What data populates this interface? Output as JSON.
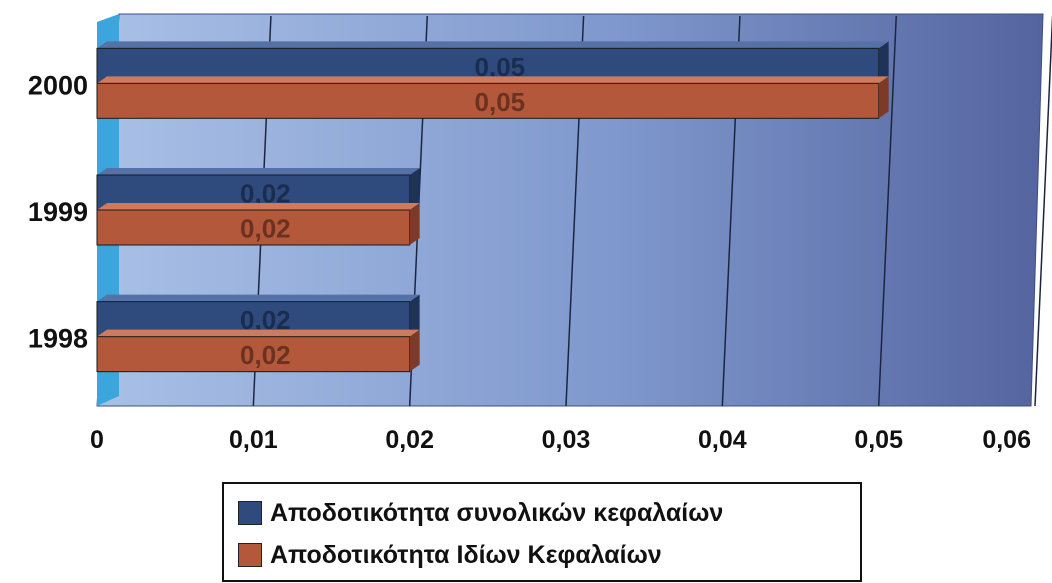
{
  "chart_data": {
    "type": "bar",
    "orientation": "horizontal",
    "categories": [
      "1998",
      "1999",
      "2000"
    ],
    "series": [
      {
        "name": "Αποδοτικότητα συνολικών κεφαλαίων",
        "values": [
          0.02,
          0.02,
          0.05
        ],
        "labels": [
          "0,02",
          "0,02",
          "0,05"
        ],
        "color": "#2f4a7c"
      },
      {
        "name": "Αποδοτικότητα Ιδίων Κεφαλαίων",
        "values": [
          0.02,
          0.02,
          0.05
        ],
        "labels": [
          "0,02",
          "0,02",
          "0,05"
        ],
        "color": "#b4583c"
      }
    ],
    "x_ticks": [
      0,
      0.01,
      0.02,
      0.03,
      0.04,
      0.05,
      0.06
    ],
    "x_tick_labels": [
      "0",
      "0,01",
      "0,02",
      "0,03",
      "0,04",
      "0,05",
      "0,06"
    ],
    "xlim": [
      0,
      0.06
    ],
    "grid": true,
    "legend_position": "bottom",
    "background_color": "#8fa6d2"
  }
}
